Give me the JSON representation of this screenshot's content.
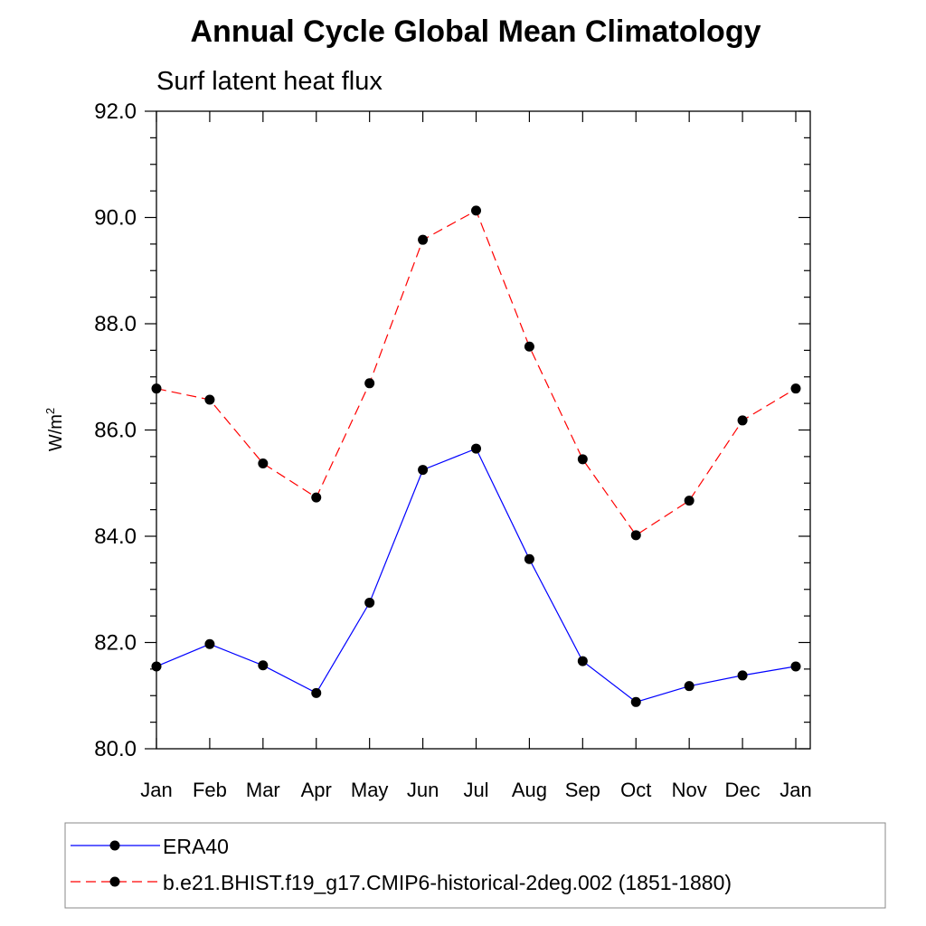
{
  "chart_data": {
    "type": "line",
    "title": "Annual Cycle Global Mean Climatology",
    "subtitle": "Surf latent heat flux",
    "ylabel": "W/m",
    "ylabel_sup": "2",
    "ylim": [
      80.0,
      92.0
    ],
    "yticks": [
      80.0,
      82.0,
      84.0,
      86.0,
      88.0,
      90.0,
      92.0
    ],
    "ytick_labels": [
      "80.0",
      "82.0",
      "84.0",
      "86.0",
      "88.0",
      "90.0",
      "92.0"
    ],
    "categories": [
      "Jan",
      "Feb",
      "Mar",
      "Apr",
      "May",
      "Jun",
      "Jul",
      "Aug",
      "Sep",
      "Oct",
      "Nov",
      "Dec",
      "Jan"
    ],
    "grid": false,
    "legend_position": "bottom",
    "series": [
      {
        "name": "ERA40",
        "color": "#0000ff",
        "line_style": "solid",
        "marker": "filled-circle",
        "values": [
          81.55,
          81.97,
          81.57,
          81.05,
          82.75,
          85.25,
          85.65,
          83.57,
          81.65,
          80.88,
          81.18,
          81.38,
          81.55
        ]
      },
      {
        "name": "b.e21.BHIST.f19_g17.CMIP6-historical-2deg.002 (1851-1880)",
        "color": "#ff0000",
        "line_style": "dashed",
        "marker": "filled-circle",
        "values": [
          86.78,
          86.57,
          85.37,
          84.73,
          86.88,
          89.58,
          90.13,
          87.57,
          85.45,
          84.02,
          84.67,
          86.18,
          86.78
        ]
      }
    ]
  }
}
